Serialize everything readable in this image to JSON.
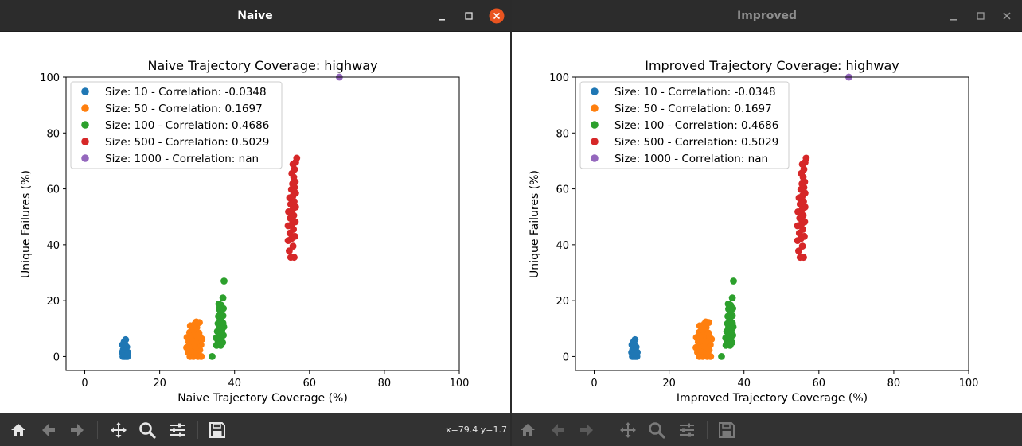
{
  "coverage_sizes": [
    10,
    50,
    100,
    500,
    1000
  ],
  "colors": [
    "#1f77b4",
    "#ff7f0e",
    "#2ca02c",
    "#d62728",
    "#9467bd"
  ],
  "windows": [
    {
      "title": "Naive",
      "active": true,
      "coords_text": "x=79.4 y=1.7",
      "chart_data": {
        "type": "scatter",
        "title": "Naive Trajectory Coverage: highway",
        "xlabel": "Naive Trajectory Coverage (%)",
        "ylabel": "Unique Failures (%)",
        "xlim": [
          -5,
          100
        ],
        "ylim": [
          -5,
          100
        ],
        "xticks": [
          0,
          20,
          40,
          60,
          80,
          100
        ],
        "yticks": [
          0,
          20,
          40,
          60,
          80,
          100
        ],
        "legend_position": "top-left",
        "series": [
          {
            "name": "Size: 10 - Correlation: -0.0348",
            "points": [
              [
                10.2,
                0
              ],
              [
                10.6,
                0
              ],
              [
                11.0,
                0
              ],
              [
                11.4,
                0
              ],
              [
                10.4,
                0.8
              ],
              [
                11.1,
                0.8
              ],
              [
                10.0,
                1.5
              ],
              [
                10.7,
                1.5
              ],
              [
                11.5,
                1.5
              ],
              [
                10.3,
                2.5
              ],
              [
                11.0,
                2.5
              ],
              [
                10.6,
                3.4
              ],
              [
                11.2,
                3.4
              ],
              [
                10.1,
                4.2
              ],
              [
                10.8,
                4.2
              ],
              [
                10.5,
                5.2
              ],
              [
                10.9,
                6.0
              ]
            ]
          },
          {
            "name": "Size: 50 - Correlation: 0.1697",
            "points": [
              [
                28.1,
                0
              ],
              [
                29.0,
                0
              ],
              [
                30.2,
                0
              ],
              [
                31.1,
                0
              ],
              [
                27.6,
                1.5
              ],
              [
                28.7,
                2.0
              ],
              [
                29.8,
                1.6
              ],
              [
                30.7,
                2.3
              ],
              [
                27.2,
                3.2
              ],
              [
                28.4,
                4.0
              ],
              [
                29.6,
                3.6
              ],
              [
                31.0,
                4.2
              ],
              [
                27.8,
                5.2
              ],
              [
                28.9,
                5.8
              ],
              [
                30.1,
                5.6
              ],
              [
                31.3,
                6.2
              ],
              [
                27.3,
                6.8
              ],
              [
                28.5,
                7.4
              ],
              [
                29.7,
                7.8
              ],
              [
                30.8,
                7.0
              ],
              [
                28.0,
                8.6
              ],
              [
                29.3,
                9.0
              ],
              [
                30.5,
                8.4
              ],
              [
                28.7,
                10.0
              ],
              [
                29.9,
                10.4
              ],
              [
                28.2,
                11.0
              ],
              [
                29.4,
                11.6
              ],
              [
                30.6,
                12.2
              ],
              [
                29.8,
                12.4
              ]
            ]
          },
          {
            "name": "Size: 100 - Correlation: 0.4686",
            "points": [
              [
                34.0,
                0
              ],
              [
                35.2,
                4.0
              ],
              [
                36.3,
                4.0
              ],
              [
                35.6,
                5.2
              ],
              [
                36.8,
                5.0
              ],
              [
                35.1,
                6.6
              ],
              [
                36.4,
                6.4
              ],
              [
                35.8,
                7.8
              ],
              [
                37.0,
                7.6
              ],
              [
                35.4,
                9.0
              ],
              [
                36.6,
                9.4
              ],
              [
                35.9,
                10.4
              ],
              [
                37.1,
                10.6
              ],
              [
                35.6,
                11.8
              ],
              [
                36.9,
                12.0
              ],
              [
                36.2,
                13.2
              ],
              [
                35.7,
                14.4
              ],
              [
                36.9,
                14.6
              ],
              [
                36.3,
                15.8
              ],
              [
                35.9,
                17.0
              ],
              [
                37.0,
                17.2
              ],
              [
                36.4,
                18.4
              ],
              [
                35.8,
                18.8
              ],
              [
                36.9,
                21.0
              ],
              [
                37.2,
                27.0
              ]
            ]
          },
          {
            "name": "Size: 500 - Correlation: 0.5029",
            "points": [
              [
                55.0,
                35.5
              ],
              [
                55.9,
                35.5
              ],
              [
                54.6,
                37.8
              ],
              [
                55.6,
                39.5
              ],
              [
                54.3,
                41.5
              ],
              [
                55.2,
                42.2
              ],
              [
                56.1,
                43.0
              ],
              [
                54.8,
                44.2
              ],
              [
                55.7,
                45.5
              ],
              [
                54.3,
                46.8
              ],
              [
                55.4,
                47.5
              ],
              [
                56.2,
                48.2
              ],
              [
                54.9,
                49.5
              ],
              [
                55.8,
                50.5
              ],
              [
                54.4,
                51.8
              ],
              [
                55.5,
                52.5
              ],
              [
                56.3,
                53.5
              ],
              [
                55.0,
                54.5
              ],
              [
                55.9,
                55.5
              ],
              [
                54.7,
                56.8
              ],
              [
                55.6,
                57.5
              ],
              [
                56.3,
                58.5
              ],
              [
                55.2,
                59.8
              ],
              [
                56.0,
                60.5
              ],
              [
                55.5,
                61.8
              ],
              [
                56.2,
                62.5
              ],
              [
                55.8,
                64.2
              ],
              [
                55.3,
                65.5
              ],
              [
                56.0,
                67.0
              ],
              [
                55.6,
                68.8
              ],
              [
                56.3,
                69.5
              ],
              [
                56.6,
                71.0
              ]
            ]
          },
          {
            "name": "Size: 1000 - Correlation: nan",
            "points": [
              [
                68.0,
                100
              ]
            ]
          }
        ]
      }
    },
    {
      "title": "Improved",
      "active": false,
      "coords_text": "",
      "chart_data": {
        "type": "scatter",
        "title": "Improved Trajectory Coverage: highway",
        "xlabel": "Improved Trajectory Coverage (%)",
        "ylabel": "Unique Failures (%)",
        "xlim": [
          -5,
          100
        ],
        "ylim": [
          -5,
          100
        ],
        "xticks": [
          0,
          20,
          40,
          60,
          80,
          100
        ],
        "yticks": [
          0,
          20,
          40,
          60,
          80,
          100
        ],
        "legend_position": "top-left",
        "series": [
          {
            "name": "Size: 10 - Correlation: -0.0348",
            "points": [
              [
                10.2,
                0
              ],
              [
                10.6,
                0
              ],
              [
                11.0,
                0
              ],
              [
                11.4,
                0
              ],
              [
                10.4,
                0.8
              ],
              [
                11.1,
                0.8
              ],
              [
                10.0,
                1.5
              ],
              [
                10.7,
                1.5
              ],
              [
                11.5,
                1.5
              ],
              [
                10.3,
                2.5
              ],
              [
                11.0,
                2.5
              ],
              [
                10.6,
                3.4
              ],
              [
                11.2,
                3.4
              ],
              [
                10.1,
                4.2
              ],
              [
                10.8,
                4.2
              ],
              [
                10.5,
                5.2
              ],
              [
                10.9,
                6.0
              ]
            ]
          },
          {
            "name": "Size: 50 - Correlation: 0.1697",
            "points": [
              [
                28.1,
                0
              ],
              [
                29.0,
                0
              ],
              [
                30.2,
                0
              ],
              [
                31.1,
                0
              ],
              [
                27.6,
                1.5
              ],
              [
                28.7,
                2.0
              ],
              [
                29.8,
                1.6
              ],
              [
                30.7,
                2.3
              ],
              [
                27.2,
                3.2
              ],
              [
                28.4,
                4.0
              ],
              [
                29.6,
                3.6
              ],
              [
                31.0,
                4.2
              ],
              [
                27.8,
                5.2
              ],
              [
                28.9,
                5.8
              ],
              [
                30.1,
                5.6
              ],
              [
                31.3,
                6.2
              ],
              [
                27.3,
                6.8
              ],
              [
                28.5,
                7.4
              ],
              [
                29.7,
                7.8
              ],
              [
                30.8,
                7.0
              ],
              [
                28.0,
                8.6
              ],
              [
                29.3,
                9.0
              ],
              [
                30.5,
                8.4
              ],
              [
                28.7,
                10.0
              ],
              [
                29.9,
                10.4
              ],
              [
                28.2,
                11.0
              ],
              [
                29.4,
                11.6
              ],
              [
                30.6,
                12.2
              ],
              [
                29.8,
                12.4
              ]
            ]
          },
          {
            "name": "Size: 100 - Correlation: 0.4686",
            "points": [
              [
                34.0,
                0
              ],
              [
                35.2,
                4.0
              ],
              [
                36.3,
                4.0
              ],
              [
                35.6,
                5.2
              ],
              [
                36.8,
                5.0
              ],
              [
                35.1,
                6.6
              ],
              [
                36.4,
                6.4
              ],
              [
                35.8,
                7.8
              ],
              [
                37.0,
                7.6
              ],
              [
                35.4,
                9.0
              ],
              [
                36.6,
                9.4
              ],
              [
                35.9,
                10.4
              ],
              [
                37.1,
                10.6
              ],
              [
                35.6,
                11.8
              ],
              [
                36.9,
                12.0
              ],
              [
                36.2,
                13.2
              ],
              [
                35.7,
                14.4
              ],
              [
                36.9,
                14.6
              ],
              [
                36.3,
                15.8
              ],
              [
                35.9,
                17.0
              ],
              [
                37.0,
                17.2
              ],
              [
                36.4,
                18.4
              ],
              [
                35.8,
                18.8
              ],
              [
                36.9,
                21.0
              ],
              [
                37.2,
                27.0
              ]
            ]
          },
          {
            "name": "Size: 500 - Correlation: 0.5029",
            "points": [
              [
                55.0,
                35.5
              ],
              [
                55.9,
                35.5
              ],
              [
                54.6,
                37.8
              ],
              [
                55.6,
                39.5
              ],
              [
                54.3,
                41.5
              ],
              [
                55.2,
                42.2
              ],
              [
                56.1,
                43.0
              ],
              [
                54.8,
                44.2
              ],
              [
                55.7,
                45.5
              ],
              [
                54.3,
                46.8
              ],
              [
                55.4,
                47.5
              ],
              [
                56.2,
                48.2
              ],
              [
                54.9,
                49.5
              ],
              [
                55.8,
                50.5
              ],
              [
                54.4,
                51.8
              ],
              [
                55.5,
                52.5
              ],
              [
                56.3,
                53.5
              ],
              [
                55.0,
                54.5
              ],
              [
                55.9,
                55.5
              ],
              [
                54.7,
                56.8
              ],
              [
                55.6,
                57.5
              ],
              [
                56.3,
                58.5
              ],
              [
                55.2,
                59.8
              ],
              [
                56.0,
                60.5
              ],
              [
                55.5,
                61.8
              ],
              [
                56.2,
                62.5
              ],
              [
                55.8,
                64.2
              ],
              [
                55.3,
                65.5
              ],
              [
                56.0,
                67.0
              ],
              [
                55.6,
                68.8
              ],
              [
                56.3,
                69.5
              ],
              [
                56.6,
                71.0
              ]
            ]
          },
          {
            "name": "Size: 1000 - Correlation: nan",
            "points": [
              [
                68.0,
                100
              ]
            ]
          }
        ]
      }
    }
  ],
  "toolbar_icons": [
    "home-icon",
    "back-arrow-icon",
    "forward-arrow-icon",
    "pan-icon",
    "zoom-icon",
    "configure-subplots-icon",
    "save-icon"
  ]
}
